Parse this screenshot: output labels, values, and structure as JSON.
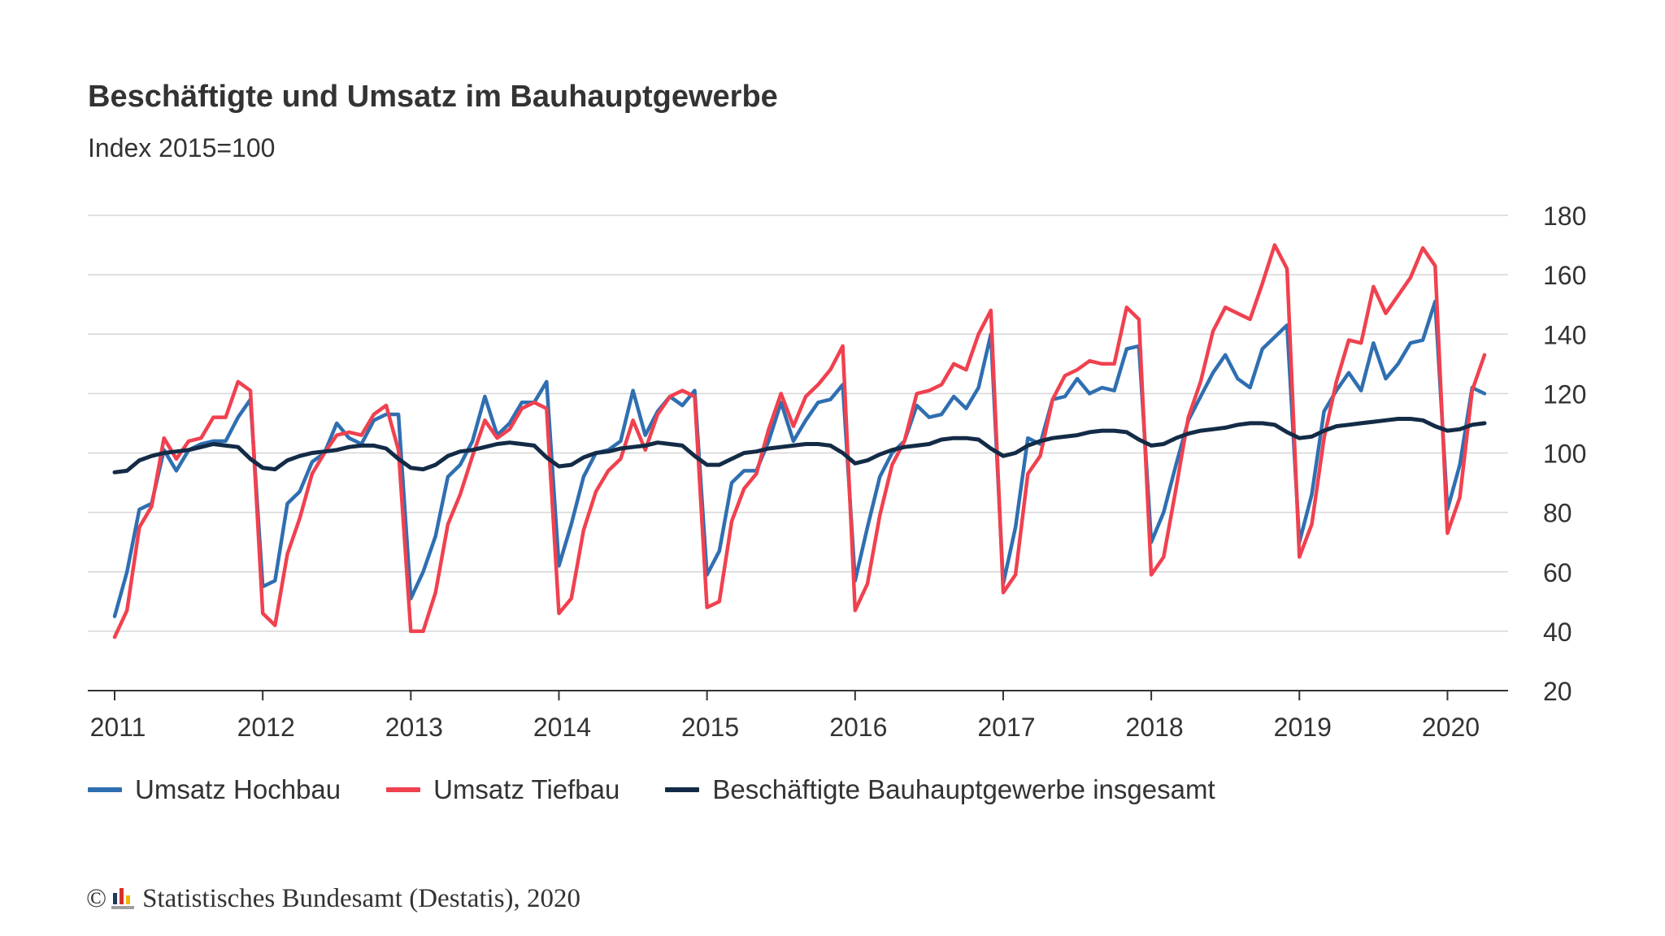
{
  "header": {
    "title": "Beschäftigte und Umsatz im Bauhauptgewerbe",
    "subtitle": "Index 2015=100"
  },
  "legend": {
    "items": [
      {
        "label": "Umsatz Hochbau",
        "color": "#2f6fb1"
      },
      {
        "label": "Umsatz Tiefbau",
        "color": "#f0414f"
      },
      {
        "label": "Beschäftigte Bauhauptgewerbe insgesamt",
        "color": "#132b46"
      }
    ]
  },
  "footer": {
    "copyright_symbol": "©",
    "source": "Statistisches Bundesamt (Destatis), 2020",
    "logo_icon": "destatis-logo-icon"
  },
  "chart_data": {
    "type": "line",
    "title": "Beschäftigte und Umsatz im Bauhauptgewerbe",
    "subtitle": "Index 2015=100",
    "xlabel": "",
    "ylabel": "",
    "ylim": [
      20,
      180
    ],
    "yticks": [
      20,
      40,
      60,
      80,
      100,
      120,
      140,
      160,
      180
    ],
    "xticks": [
      "2011",
      "2012",
      "2013",
      "2014",
      "2015",
      "2016",
      "2017",
      "2018",
      "2019",
      "2020"
    ],
    "x_start": "2011-01",
    "x_end": "2020-04",
    "frequency": "monthly",
    "grid": true,
    "y_axis_position": "right",
    "legend_position": "bottom",
    "series": [
      {
        "name": "Umsatz Hochbau",
        "color": "#2f6fb1",
        "values": [
          45,
          60,
          81,
          83,
          101,
          94,
          101,
          103,
          104,
          104,
          112,
          118,
          55,
          57,
          83,
          87,
          97,
          100,
          110,
          105,
          103,
          111,
          113,
          113,
          51,
          60,
          72,
          92,
          96,
          104,
          119,
          106,
          110,
          117,
          117,
          124,
          62,
          76,
          92,
          100,
          101,
          104,
          121,
          106,
          114,
          119,
          116,
          121,
          59,
          67,
          90,
          94,
          94,
          104,
          117,
          104,
          111,
          117,
          118,
          123,
          57,
          75,
          92,
          100,
          104,
          116,
          112,
          113,
          119,
          115,
          122,
          140,
          56,
          75,
          105,
          103,
          118,
          119,
          125,
          120,
          122,
          121,
          135,
          136,
          70,
          80,
          96,
          111,
          119,
          127,
          133,
          125,
          122,
          135,
          139,
          143,
          70,
          86,
          114,
          121,
          127,
          121,
          137,
          125,
          130,
          137,
          138,
          151,
          81,
          96,
          122,
          120
        ]
      },
      {
        "name": "Umsatz Tiefbau",
        "color": "#f0414f",
        "values": [
          38,
          47,
          75,
          82,
          105,
          98,
          104,
          105,
          112,
          112,
          124,
          121,
          46,
          42,
          66,
          78,
          93,
          100,
          106,
          107,
          106,
          113,
          116,
          101,
          40,
          40,
          53,
          76,
          86,
          99,
          111,
          105,
          108,
          115,
          117,
          115,
          46,
          51,
          74,
          87,
          94,
          98,
          111,
          101,
          113,
          119,
          121,
          119,
          48,
          50,
          77,
          88,
          93,
          108,
          120,
          109,
          119,
          123,
          128,
          136,
          47,
          56,
          79,
          96,
          104,
          120,
          121,
          123,
          130,
          128,
          140,
          148,
          53,
          59,
          93,
          99,
          118,
          126,
          128,
          131,
          130,
          130,
          149,
          145,
          59,
          65,
          88,
          112,
          124,
          141,
          149,
          147,
          145,
          157,
          170,
          162,
          65,
          76,
          105,
          124,
          138,
          137,
          156,
          147,
          153,
          159,
          169,
          163,
          73,
          85,
          121,
          133
        ]
      },
      {
        "name": "Beschäftigte Bauhauptgewerbe insgesamt",
        "color": "#132b46",
        "values": [
          93.5,
          94,
          97.5,
          99,
          100,
          100.5,
          101,
          102,
          103,
          102.5,
          102,
          98,
          95,
          94.5,
          97.5,
          99,
          100,
          100.5,
          101,
          102,
          102.5,
          102.5,
          101.5,
          98,
          95,
          94.5,
          96,
          99,
          100.5,
          101,
          102,
          103,
          103.5,
          103,
          102.5,
          98.5,
          95.5,
          96,
          98.5,
          100,
          100.5,
          101.5,
          102,
          102.5,
          103.5,
          103,
          102.5,
          99,
          96,
          96,
          98,
          100,
          100.5,
          101.5,
          102,
          102.5,
          103,
          103,
          102.5,
          100,
          96.5,
          97.5,
          99.5,
          101,
          102,
          102.5,
          103,
          104.5,
          105,
          105,
          104.5,
          101.5,
          99,
          100,
          102.5,
          104,
          105,
          105.5,
          106,
          107,
          107.5,
          107.5,
          107,
          104.5,
          102.5,
          103,
          105,
          106.5,
          107.5,
          108,
          108.5,
          109.5,
          110,
          110,
          109.5,
          107,
          105,
          105.5,
          107.5,
          109,
          109.5,
          110,
          110.5,
          111,
          111.5,
          111.5,
          111,
          109,
          107.5,
          108,
          109.5,
          110
        ]
      }
    ]
  }
}
